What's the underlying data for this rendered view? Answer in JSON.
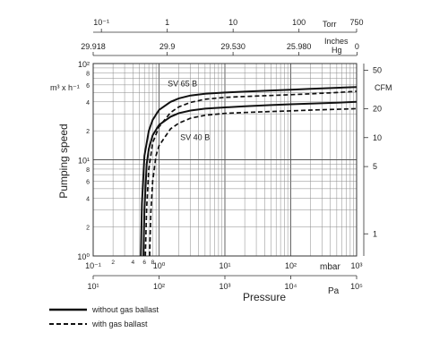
{
  "chart_data": {
    "type": "line",
    "y_axis": {
      "label": "Pumping speed",
      "unit": "m³ x h⁻¹",
      "scale": "log",
      "range": [
        1,
        100
      ],
      "major_tick_labels": [
        "10⁰",
        "10¹",
        "10²"
      ],
      "minor_tick_labels": [
        "2",
        "4",
        "6",
        "8",
        "2",
        "4",
        "6",
        "8"
      ]
    },
    "y_axis_right": {
      "unit": "CFM",
      "tick_labels": [
        "50",
        "20",
        "10",
        "5",
        "1"
      ],
      "tick_values": [
        50,
        20,
        10,
        5,
        1
      ]
    },
    "x_axis_mbar": {
      "unit": "mbar",
      "scale": "log",
      "range": [
        0.1,
        1000
      ],
      "major_tick_labels": [
        "10⁻¹",
        "10⁰",
        "10¹",
        "10²",
        "10³"
      ],
      "minor_tick_labels": [
        "2",
        "4",
        "6",
        "8"
      ]
    },
    "x_axis_pa": {
      "label": "Pressure",
      "unit": "Pa",
      "tick_labels": [
        "10¹",
        "10²",
        "10³",
        "10⁴",
        "10⁵"
      ]
    },
    "x_axis_torr": {
      "unit": "Torr",
      "tick_labels": [
        "10⁻¹",
        "1",
        "10",
        "100",
        "750"
      ],
      "tick_values": [
        0.1,
        1,
        10,
        100,
        750
      ]
    },
    "x_axis_inches_hg": {
      "unit_line1": "Inches",
      "unit_line2": "Hg",
      "tick_labels": [
        "29.918",
        "29.9",
        "29.530",
        "25.980",
        "0"
      ],
      "tick_values_mbar": [
        0.1,
        1.33,
        13.3,
        133,
        1013
      ]
    },
    "series": [
      {
        "name": "SV 65 B",
        "style": "solid",
        "x": [
          0.53,
          0.55,
          0.6,
          0.7,
          0.8,
          1,
          1.5,
          2,
          3,
          5,
          10,
          20,
          50,
          100,
          200,
          500,
          1000
        ],
        "y": [
          1,
          3.5,
          11,
          20,
          26,
          33,
          40,
          43.5,
          46.5,
          48.5,
          50,
          51,
          52.5,
          53.5,
          54.5,
          56,
          57
        ]
      },
      {
        "name": "SV 65 B",
        "style": "dashed",
        "x": [
          0.62,
          0.65,
          0.7,
          0.8,
          1,
          1.5,
          2,
          3,
          5,
          10,
          20,
          50,
          100,
          200,
          500,
          1000
        ],
        "y": [
          1,
          3.2,
          8,
          15,
          22,
          31,
          35.5,
          39.5,
          42.5,
          44.5,
          45.5,
          46.5,
          47.5,
          48.5,
          50,
          51.5
        ]
      },
      {
        "name": "SV 40 B",
        "style": "solid",
        "x": [
          0.58,
          0.6,
          0.65,
          0.7,
          0.8,
          1,
          1.5,
          2,
          3,
          5,
          10,
          20,
          50,
          100,
          200,
          500,
          1000
        ],
        "y": [
          1,
          3,
          9,
          13,
          18,
          23,
          28,
          30.5,
          32.5,
          34,
          35,
          36,
          37,
          37.7,
          38.3,
          39.2,
          40
        ]
      },
      {
        "name": "SV 40 B",
        "style": "dashed",
        "x": [
          0.72,
          0.75,
          0.8,
          0.9,
          1,
          1.5,
          2,
          3,
          5,
          10,
          20,
          50,
          100,
          200,
          500,
          1000
        ],
        "y": [
          1,
          2.8,
          6,
          11,
          14,
          21,
          24,
          27,
          29,
          30.3,
          31,
          31.7,
          32.2,
          32.8,
          33.5,
          34
        ]
      }
    ],
    "curve_labels": [
      {
        "text": "SV 65 B",
        "x": 1.35,
        "y": 58
      },
      {
        "text": "SV 40 B",
        "x": 2.1,
        "y": 16
      }
    ],
    "legend": [
      {
        "label": "without gas ballast",
        "style": "solid"
      },
      {
        "label": "with gas ballast",
        "style": "dashed"
      }
    ],
    "legend_position": "bottom-left",
    "grid": true
  }
}
